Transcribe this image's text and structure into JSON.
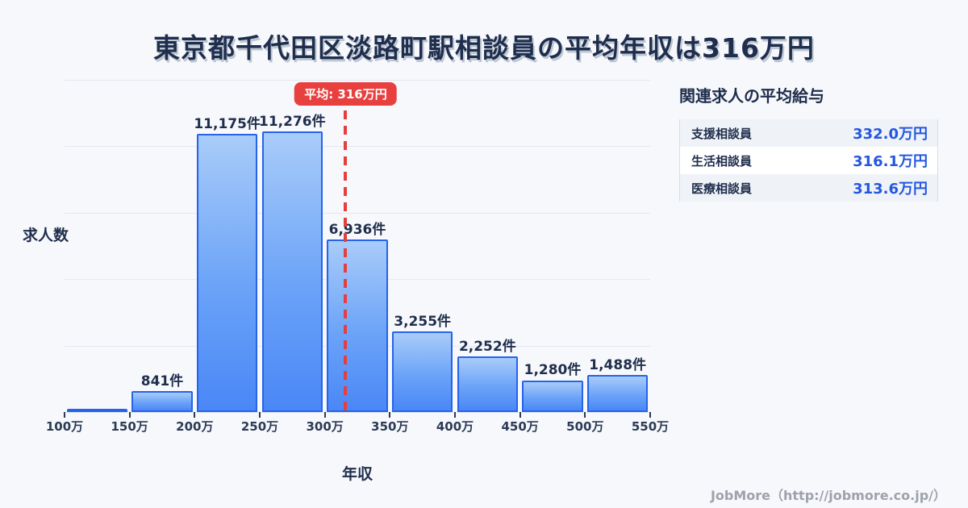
{
  "title": "東京都千代田区淡路町駅相談員の平均年収は316万円",
  "chart_data": {
    "type": "bar",
    "title": "東京都千代田区淡路町駅相談員の平均年収は316万円",
    "xlabel": "年収",
    "ylabel": "求人数",
    "grid": true,
    "legend_position": "none",
    "x_ticks": [
      "100万",
      "150万",
      "200万",
      "250万",
      "300万",
      "350万",
      "400万",
      "450万",
      "500万",
      "550万"
    ],
    "ylim": [
      0,
      13350
    ],
    "bins": [
      {
        "range": "100万-150万",
        "value": 100,
        "label": ""
      },
      {
        "range": "150万-200万",
        "value": 841,
        "label": "841件"
      },
      {
        "range": "200万-250万",
        "value": 11175,
        "label": "11,175件"
      },
      {
        "range": "250万-300万",
        "value": 11276,
        "label": "11,276件"
      },
      {
        "range": "300万-350万",
        "value": 6936,
        "label": "6,936件"
      },
      {
        "range": "350万-400万",
        "value": 3255,
        "label": "3,255件"
      },
      {
        "range": "400万-450万",
        "value": 2252,
        "label": "2,252件"
      },
      {
        "range": "450万-500万",
        "value": 1280,
        "label": "1,280件"
      },
      {
        "range": "500万-550万",
        "value": 1488,
        "label": "1,488件"
      }
    ],
    "x_range": [
      100,
      550
    ],
    "mean": {
      "value": 316,
      "label": "平均: 316万円"
    }
  },
  "salary_panel": {
    "header": "関連求人の平均給与",
    "rows": [
      {
        "label": "支援相談員",
        "value": "332.0万円"
      },
      {
        "label": "生活相談員",
        "value": "316.1万円"
      },
      {
        "label": "医療相談員",
        "value": "313.6万円"
      }
    ]
  },
  "footer": {
    "credit": "JobMore（http://jobmore.co.jp/）"
  },
  "colors": {
    "background": "#f7f8fb",
    "bar_fill_top": "#a9ccf9",
    "bar_fill_bottom": "#4a87f6",
    "bar_border": "#2563eb",
    "mean_red": "#e8403f",
    "text_dark": "#1f2e4d",
    "value_blue": "#2457e0",
    "gridline": "#e4e8ef",
    "footer_gray": "#9da2ab"
  }
}
